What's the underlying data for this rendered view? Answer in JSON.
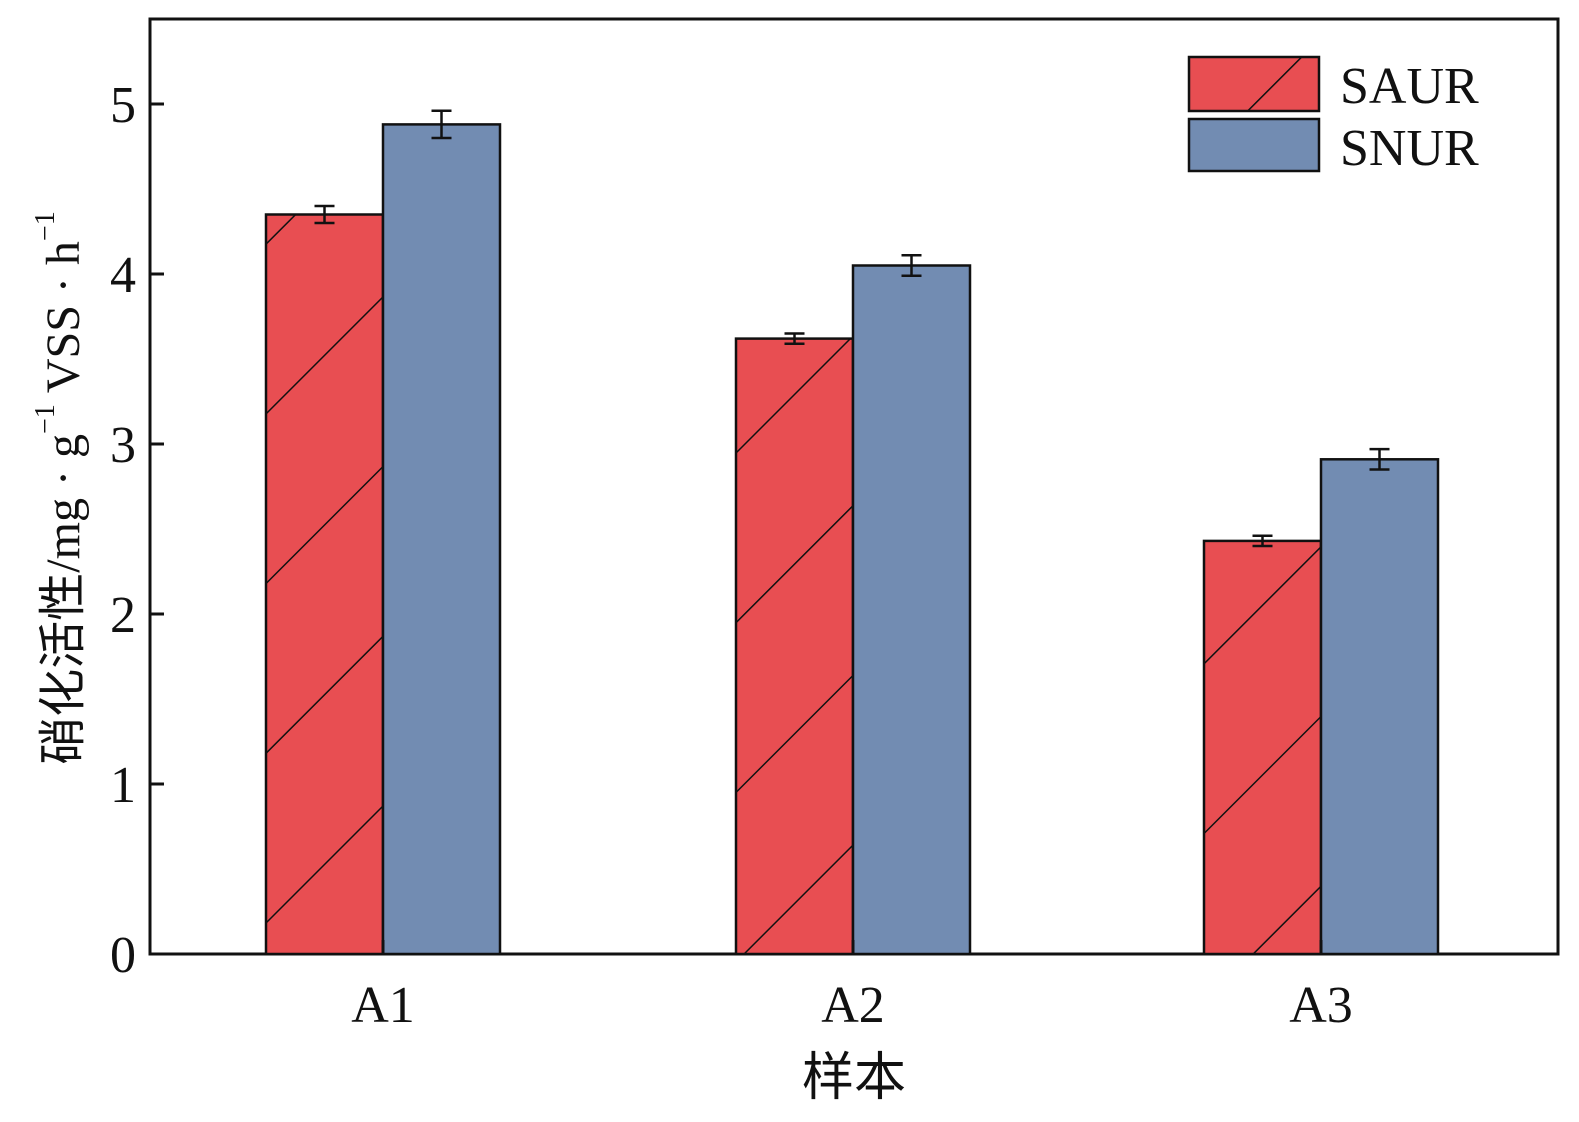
{
  "chart_data": {
    "type": "bar",
    "categories": [
      "A1",
      "A2",
      "A3"
    ],
    "series": [
      {
        "name": "SAUR",
        "values": [
          4.35,
          3.62,
          2.43
        ],
        "errors": [
          0.05,
          0.03,
          0.03
        ],
        "color": "#e84e52",
        "pattern": "diagonal-hatch"
      },
      {
        "name": "SNUR",
        "values": [
          4.88,
          4.05,
          2.91
        ],
        "errors": [
          0.08,
          0.06,
          0.06
        ],
        "color": "#728cb2",
        "pattern": "solid"
      }
    ],
    "xlabel": "样本",
    "ylabel": "硝化活性/mg · g",
    "ylabel_sup1": "−1",
    "ylabel_mid": " VSS · h",
    "ylabel_sup2": "−1",
    "ylim": [
      0,
      5.5
    ],
    "yticks": [
      0,
      1,
      2,
      3,
      4,
      5
    ],
    "ytick_labels": [
      "0",
      "1",
      "2",
      "3",
      "4",
      "5"
    ],
    "grid": false,
    "legend_position": "top-right",
    "border_color": "#111111"
  }
}
